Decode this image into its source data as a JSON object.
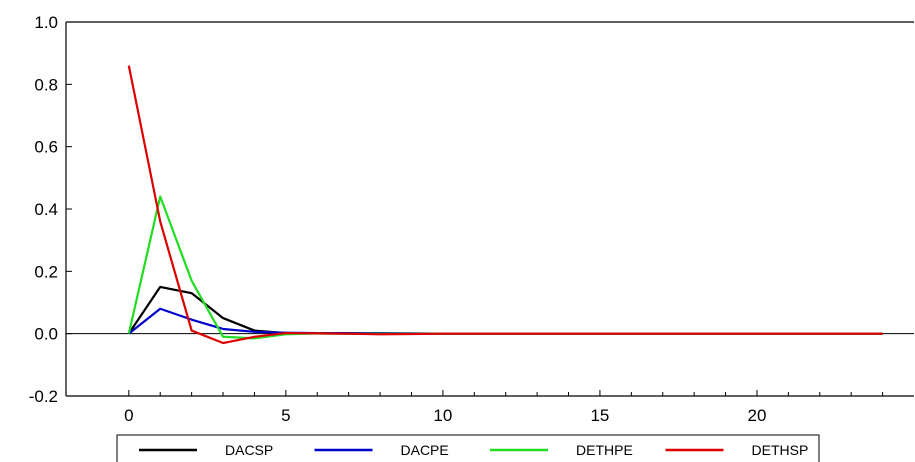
{
  "chart_data": {
    "type": "line",
    "title": "",
    "xlabel": "",
    "ylabel": "",
    "xlim": [
      -2,
      25
    ],
    "ylim": [
      -0.2,
      1.0
    ],
    "x_ticks": [
      0,
      5,
      10,
      15,
      20
    ],
    "x_tick_labels": [
      "0",
      "5",
      "10",
      "15",
      "20"
    ],
    "y_ticks": [
      -0.2,
      0.0,
      0.2,
      0.4,
      0.6,
      0.8,
      1.0
    ],
    "y_tick_labels": [
      "-0.2",
      "0.0",
      "0.2",
      "0.4",
      "0.6",
      "0.8",
      "1.0"
    ],
    "grid": false,
    "zero_line": true,
    "legend_position": "bottom",
    "x": [
      0,
      1,
      2,
      3,
      4,
      5,
      6,
      7,
      8,
      9,
      10,
      11,
      12,
      13,
      14,
      15,
      16,
      17,
      18,
      19,
      20,
      21,
      22,
      23,
      24
    ],
    "series": [
      {
        "name": "DACSP",
        "color": "#000000",
        "values": [
          0.0,
          0.15,
          0.13,
          0.05,
          0.01,
          0.002,
          0.001,
          0.0,
          0.0,
          0.0,
          0.0,
          0.0,
          0.0,
          0.0,
          0.0,
          0.0,
          0.0,
          0.0,
          0.0,
          0.0,
          0.0,
          0.0,
          0.0,
          0.0,
          0.0
        ]
      },
      {
        "name": "DACPE",
        "color": "#0000cc",
        "values": [
          0.0,
          0.08,
          0.045,
          0.015,
          0.006,
          0.003,
          0.002,
          0.002,
          0.002,
          0.001,
          0.0,
          0.0,
          0.0,
          0.0,
          0.0,
          0.0,
          0.0,
          0.0,
          0.0,
          0.0,
          0.0,
          0.0,
          0.0,
          0.0,
          0.0
        ]
      },
      {
        "name": "DETHPE",
        "color": "#22dd22",
        "values": [
          0.0,
          0.44,
          0.17,
          -0.01,
          -0.015,
          -0.002,
          0.001,
          0.0,
          0.0,
          0.0,
          0.0,
          0.0,
          0.0,
          0.0,
          0.0,
          0.0,
          0.0,
          0.0,
          0.0,
          0.0,
          0.0,
          0.0,
          0.0,
          0.0,
          0.0
        ]
      },
      {
        "name": "DETHSP",
        "color": "#dd0000",
        "values": [
          0.86,
          0.36,
          0.01,
          -0.03,
          -0.01,
          0.002,
          0.001,
          0.0,
          -0.002,
          -0.001,
          0.0,
          0.0,
          0.0,
          0.0,
          0.0,
          0.0,
          0.0,
          0.0,
          0.0,
          0.0,
          0.0,
          0.0,
          0.0,
          0.0,
          0.0
        ]
      }
    ]
  }
}
